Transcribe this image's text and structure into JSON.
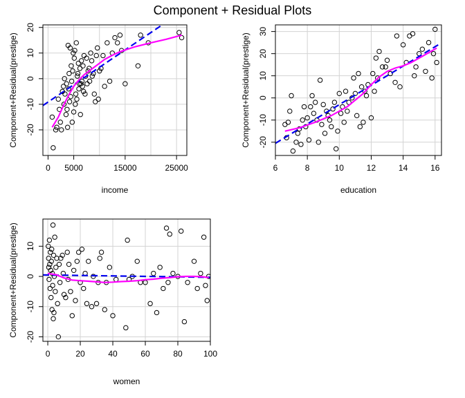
{
  "page_title": "Component + Residual Plots",
  "colors": {
    "points": "#000000",
    "fit_line": "#0000ee",
    "smooth_line": "#ff00ff",
    "grid": "#d3d3d3",
    "frame": "#000000"
  },
  "chart_data": [
    {
      "type": "scatter",
      "xlabel": "income",
      "ylabel": "Component+Residual(prestige)",
      "xlim": [
        -1000,
        27000
      ],
      "ylim": [
        -30,
        21
      ],
      "xticks": [
        0,
        5000,
        15000,
        25000
      ],
      "xtick_labels": [
        "0",
        "5000",
        "15000",
        "25000"
      ],
      "yticks": [
        -20,
        -10,
        0,
        10,
        20
      ],
      "ytick_labels": [
        "-20",
        "-10",
        "0",
        "10",
        "20"
      ],
      "grid_x": [
        0,
        5000,
        10000,
        15000,
        20000,
        25000
      ],
      "grid_y": [
        -20,
        -10,
        0,
        10,
        20
      ],
      "grid": true,
      "points": [
        [
          800,
          -15
        ],
        [
          1000,
          -27
        ],
        [
          1500,
          -20
        ],
        [
          1700,
          -19
        ],
        [
          2000,
          -8
        ],
        [
          2200,
          -12
        ],
        [
          2400,
          -17
        ],
        [
          2600,
          -20
        ],
        [
          2800,
          -5
        ],
        [
          3000,
          -3
        ],
        [
          3100,
          -10
        ],
        [
          3200,
          0
        ],
        [
          3300,
          -6
        ],
        [
          3500,
          -14
        ],
        [
          3600,
          -2
        ],
        [
          3700,
          -12
        ],
        [
          3800,
          -19
        ],
        [
          3900,
          13
        ],
        [
          4000,
          -4
        ],
        [
          4100,
          2
        ],
        [
          4200,
          -9
        ],
        [
          4300,
          12
        ],
        [
          4400,
          -7
        ],
        [
          4500,
          5
        ],
        [
          4600,
          -1
        ],
        [
          4700,
          -17
        ],
        [
          4800,
          3
        ],
        [
          4900,
          10
        ],
        [
          5000,
          -13
        ],
        [
          5100,
          8
        ],
        [
          5200,
          11
        ],
        [
          5300,
          -10
        ],
        [
          5400,
          -6
        ],
        [
          5500,
          14
        ],
        [
          5600,
          -8
        ],
        [
          5700,
          1
        ],
        [
          5800,
          2
        ],
        [
          5900,
          6
        ],
        [
          6000,
          -4
        ],
        [
          6100,
          -2
        ],
        [
          6200,
          4
        ],
        [
          6300,
          -14
        ],
        [
          6400,
          -2
        ],
        [
          6500,
          7
        ],
        [
          6600,
          -1
        ],
        [
          6700,
          -3
        ],
        [
          6800,
          5
        ],
        [
          6900,
          -5
        ],
        [
          7000,
          9
        ],
        [
          7200,
          -6
        ],
        [
          7300,
          1
        ],
        [
          7500,
          8
        ],
        [
          7600,
          -2
        ],
        [
          7800,
          3
        ],
        [
          8000,
          4
        ],
        [
          8100,
          -1
        ],
        [
          8300,
          10
        ],
        [
          8500,
          7
        ],
        [
          8600,
          1
        ],
        [
          8800,
          2
        ],
        [
          9000,
          -6
        ],
        [
          9200,
          -9
        ],
        [
          9400,
          9
        ],
        [
          9600,
          12
        ],
        [
          9800,
          -8
        ],
        [
          10000,
          3
        ],
        [
          10300,
          4
        ],
        [
          10700,
          9
        ],
        [
          11000,
          -3
        ],
        [
          11500,
          14
        ],
        [
          12000,
          -1
        ],
        [
          12500,
          10
        ],
        [
          13000,
          16
        ],
        [
          13500,
          14
        ],
        [
          14000,
          17
        ],
        [
          14300,
          11
        ],
        [
          15000,
          -2
        ],
        [
          17500,
          5
        ],
        [
          18000,
          17
        ],
        [
          19500,
          14
        ],
        [
          25500,
          18
        ],
        [
          26000,
          16
        ]
      ],
      "fit_line": [
        [
          -1000,
          -10.5
        ],
        [
          27000,
          27.5
        ]
      ],
      "smooth_line": [
        [
          800,
          -19
        ],
        [
          2000,
          -15
        ],
        [
          3000,
          -10.5
        ],
        [
          4000,
          -6.5
        ],
        [
          5000,
          -3
        ],
        [
          6000,
          -0.5
        ],
        [
          7000,
          1.5
        ],
        [
          8000,
          3
        ],
        [
          9000,
          4.5
        ],
        [
          10000,
          6
        ],
        [
          11000,
          7.5
        ],
        [
          12000,
          8.6
        ],
        [
          13000,
          9.6
        ],
        [
          14000,
          10.5
        ],
        [
          15000,
          11.2
        ],
        [
          17000,
          12.5
        ],
        [
          20000,
          14
        ],
        [
          23000,
          15.4
        ],
        [
          26000,
          17
        ]
      ]
    },
    {
      "type": "scatter",
      "xlabel": "education",
      "ylabel": "Component+Residual(prestige)",
      "xlim": [
        6,
        16.4
      ],
      "ylim": [
        -26,
        33
      ],
      "xticks": [
        6,
        8,
        10,
        12,
        14,
        16
      ],
      "xtick_labels": [
        "6",
        "8",
        "10",
        "12",
        "14",
        "16"
      ],
      "yticks": [
        -20,
        -10,
        0,
        10,
        20,
        30
      ],
      "ytick_labels": [
        "-20",
        "-10",
        "0",
        "10",
        "20",
        "30"
      ],
      "grid_x": [
        6,
        8,
        10,
        12,
        14,
        16
      ],
      "grid_y": [
        -20,
        -10,
        0,
        10,
        20,
        30
      ],
      "grid": true,
      "points": [
        [
          6.6,
          -12
        ],
        [
          6.7,
          -18
        ],
        [
          6.8,
          -11
        ],
        [
          6.9,
          -6
        ],
        [
          7.0,
          1
        ],
        [
          7.1,
          -24
        ],
        [
          7.3,
          -20
        ],
        [
          7.4,
          -16
        ],
        [
          7.5,
          -14
        ],
        [
          7.6,
          -21
        ],
        [
          7.7,
          -10
        ],
        [
          7.8,
          -4
        ],
        [
          7.9,
          -13
        ],
        [
          8.0,
          -9
        ],
        [
          8.1,
          -19
        ],
        [
          8.2,
          -4
        ],
        [
          8.3,
          1
        ],
        [
          8.4,
          -7
        ],
        [
          8.5,
          -2
        ],
        [
          8.6,
          -10
        ],
        [
          8.7,
          -20
        ],
        [
          8.8,
          8
        ],
        [
          8.9,
          -12
        ],
        [
          9.0,
          -3
        ],
        [
          9.1,
          -16
        ],
        [
          9.2,
          -6
        ],
        [
          9.3,
          -8
        ],
        [
          9.4,
          -10
        ],
        [
          9.5,
          -13
        ],
        [
          9.6,
          -5
        ],
        [
          9.7,
          -2
        ],
        [
          9.8,
          -23
        ],
        [
          9.9,
          -15
        ],
        [
          10.0,
          2
        ],
        [
          10.1,
          -7
        ],
        [
          10.2,
          -4
        ],
        [
          10.3,
          -11
        ],
        [
          10.4,
          3
        ],
        [
          10.5,
          -6
        ],
        [
          10.6,
          -2
        ],
        [
          10.8,
          0
        ],
        [
          11.0,
          2
        ],
        [
          11.1,
          -8
        ],
        [
          11.2,
          11
        ],
        [
          11.3,
          -13
        ],
        [
          11.4,
          5
        ],
        [
          11.5,
          -11
        ],
        [
          11.6,
          3
        ],
        [
          11.7,
          1
        ],
        [
          11.8,
          6
        ],
        [
          12.0,
          -9
        ],
        [
          12.1,
          11
        ],
        [
          12.2,
          3
        ],
        [
          12.3,
          18
        ],
        [
          12.4,
          9
        ],
        [
          12.5,
          21
        ],
        [
          12.7,
          14
        ],
        [
          12.9,
          14
        ],
        [
          13.2,
          11
        ],
        [
          13.5,
          7
        ],
        [
          13.6,
          28
        ],
        [
          13.8,
          5
        ],
        [
          14.0,
          24
        ],
        [
          14.2,
          16
        ],
        [
          14.4,
          28
        ],
        [
          14.6,
          29
        ],
        [
          14.7,
          10
        ],
        [
          15.0,
          20
        ],
        [
          15.2,
          22
        ],
        [
          15.4,
          12
        ],
        [
          15.6,
          25
        ],
        [
          15.8,
          9
        ],
        [
          16.0,
          31
        ],
        [
          16.1,
          16
        ],
        [
          15.9,
          20
        ],
        [
          14.8,
          14
        ],
        [
          13.0,
          17
        ],
        [
          10.9,
          9
        ]
      ],
      "fit_line": [
        [
          6.0,
          -20.5
        ],
        [
          16.2,
          24
        ]
      ],
      "smooth_line": [
        [
          6.6,
          -15
        ],
        [
          7.5,
          -13.5
        ],
        [
          8.5,
          -11
        ],
        [
          9.5,
          -8
        ],
        [
          10.5,
          -4
        ],
        [
          11.0,
          -1
        ],
        [
          11.5,
          2
        ],
        [
          12.0,
          6
        ],
        [
          12.5,
          9.5
        ],
        [
          13.0,
          12
        ],
        [
          13.5,
          13.5
        ],
        [
          14.0,
          14.5
        ],
        [
          14.5,
          16
        ],
        [
          15.0,
          18
        ],
        [
          15.5,
          20
        ],
        [
          16.1,
          22.5
        ]
      ]
    },
    {
      "type": "scatter",
      "xlabel": "women",
      "ylabel": "Component+Residual(prestige)",
      "xlim": [
        -3,
        100
      ],
      "ylim": [
        -21.5,
        19
      ],
      "xticks": [
        0,
        20,
        40,
        60,
        80,
        100
      ],
      "xtick_labels": [
        "0",
        "20",
        "40",
        "60",
        "80",
        "100"
      ],
      "yticks": [
        -20,
        -10,
        0,
        10
      ],
      "ytick_labels": [
        "-20",
        "-10",
        "0",
        "10"
      ],
      "grid_x": [
        0,
        20,
        40,
        60,
        80,
        100
      ],
      "grid_y": [
        -20,
        -10,
        0,
        10
      ],
      "grid": true,
      "points": [
        [
          0.3,
          10
        ],
        [
          0.5,
          6
        ],
        [
          0.6,
          3
        ],
        [
          0.8,
          -1
        ],
        [
          1.0,
          12
        ],
        [
          1.2,
          4
        ],
        [
          1.4,
          -4
        ],
        [
          1.6,
          8
        ],
        [
          1.8,
          2
        ],
        [
          2.0,
          -7
        ],
        [
          2.2,
          5
        ],
        [
          2.4,
          9
        ],
        [
          2.6,
          -11
        ],
        [
          2.8,
          1
        ],
        [
          3.0,
          -3
        ],
        [
          3.2,
          17
        ],
        [
          3.4,
          -14
        ],
        [
          3.6,
          7
        ],
        [
          3.8,
          -12
        ],
        [
          4.0,
          0
        ],
        [
          4.3,
          13
        ],
        [
          4.6,
          -5
        ],
        [
          5.0,
          3
        ],
        [
          5.5,
          6
        ],
        [
          6.0,
          -9
        ],
        [
          6.5,
          -20
        ],
        [
          7.0,
          4
        ],
        [
          7.5,
          -2
        ],
        [
          8.0,
          6
        ],
        [
          9.0,
          7
        ],
        [
          9.5,
          1
        ],
        [
          10.0,
          -6
        ],
        [
          11.0,
          -7
        ],
        [
          12.0,
          8
        ],
        [
          12.5,
          -1
        ],
        [
          13.0,
          4
        ],
        [
          14.0,
          -5
        ],
        [
          15.0,
          -13
        ],
        [
          16.0,
          2
        ],
        [
          17.0,
          -8
        ],
        [
          18.0,
          5
        ],
        [
          19.0,
          8
        ],
        [
          20.0,
          -2
        ],
        [
          21.0,
          9
        ],
        [
          22.0,
          -4
        ],
        [
          23.0,
          1
        ],
        [
          24.0,
          -9
        ],
        [
          25.0,
          5
        ],
        [
          27.0,
          -10
        ],
        [
          28.0,
          0
        ],
        [
          30.0,
          -9
        ],
        [
          31.0,
          -2
        ],
        [
          32.0,
          6
        ],
        [
          33.0,
          8
        ],
        [
          35.0,
          -11
        ],
        [
          36.0,
          -2
        ],
        [
          38.0,
          3
        ],
        [
          40.0,
          -13
        ],
        [
          42.0,
          -1
        ],
        [
          48.0,
          -17
        ],
        [
          49.0,
          12
        ],
        [
          50.0,
          -1
        ],
        [
          52.0,
          0
        ],
        [
          55.0,
          5
        ],
        [
          57.0,
          -2
        ],
        [
          60.0,
          -2
        ],
        [
          63.0,
          -9
        ],
        [
          65.0,
          1
        ],
        [
          67.0,
          -12
        ],
        [
          69.0,
          3
        ],
        [
          71.0,
          -4
        ],
        [
          73.0,
          16
        ],
        [
          74.0,
          -2
        ],
        [
          75.0,
          14
        ],
        [
          77.0,
          1
        ],
        [
          80.0,
          0
        ],
        [
          82.0,
          15
        ],
        [
          84.0,
          -15
        ],
        [
          86.0,
          -2
        ],
        [
          90.0,
          5
        ],
        [
          92.0,
          -4
        ],
        [
          94.0,
          1
        ],
        [
          96.0,
          13
        ],
        [
          97.0,
          -3
        ],
        [
          98.0,
          -8
        ],
        [
          99.0,
          0
        ]
      ],
      "fit_line": [
        [
          -3,
          0.5
        ],
        [
          100,
          -0.3
        ]
      ],
      "smooth_line": [
        [
          0,
          1
        ],
        [
          5,
          0.6
        ],
        [
          10,
          -0.5
        ],
        [
          15,
          -1.2
        ],
        [
          20,
          -1.4
        ],
        [
          25,
          -1.6
        ],
        [
          30,
          -1.8
        ],
        [
          35,
          -2
        ],
        [
          40,
          -1.9
        ],
        [
          45,
          -1.7
        ],
        [
          50,
          -1.6
        ],
        [
          55,
          -1.4
        ],
        [
          60,
          -1.1
        ],
        [
          65,
          -0.9
        ],
        [
          70,
          -0.6
        ],
        [
          75,
          -0.4
        ],
        [
          80,
          -0.1
        ],
        [
          85,
          0
        ],
        [
          90,
          0
        ],
        [
          95,
          -0.1
        ],
        [
          99,
          -0.4
        ]
      ]
    }
  ]
}
